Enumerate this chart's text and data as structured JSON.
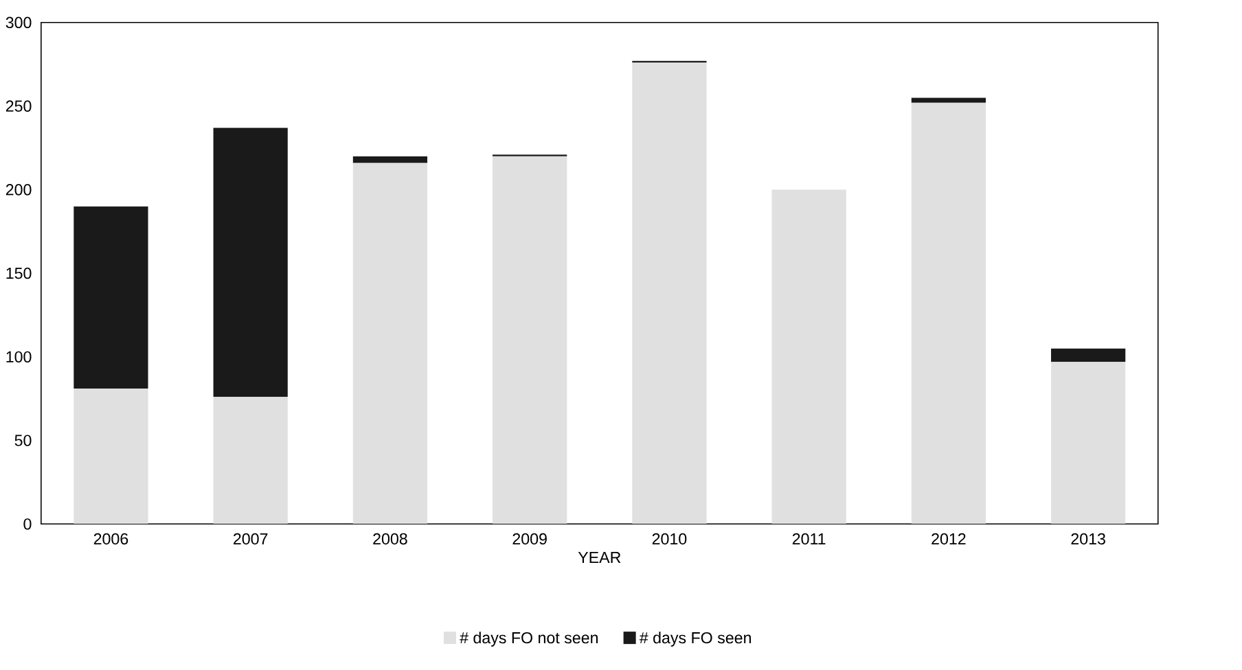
{
  "chart_data": {
    "type": "bar",
    "stacked": true,
    "xlabel": "YEAR",
    "categories": [
      "2006",
      "2007",
      "2008",
      "2009",
      "2010",
      "2011",
      "2012",
      "2013"
    ],
    "series": [
      {
        "name": "# days FO not seen",
        "color": "#e0e0e0",
        "values": [
          81,
          76,
          216,
          220,
          276,
          200,
          252,
          97
        ]
      },
      {
        "name": "# days FO seen",
        "color": "#1a1a1a",
        "values": [
          109,
          161,
          4,
          1,
          1,
          0,
          3,
          8
        ]
      }
    ],
    "ylim": [
      0,
      300
    ],
    "yticks": [
      0,
      50,
      100,
      150,
      200,
      250,
      300
    ],
    "legend": "bottom"
  }
}
